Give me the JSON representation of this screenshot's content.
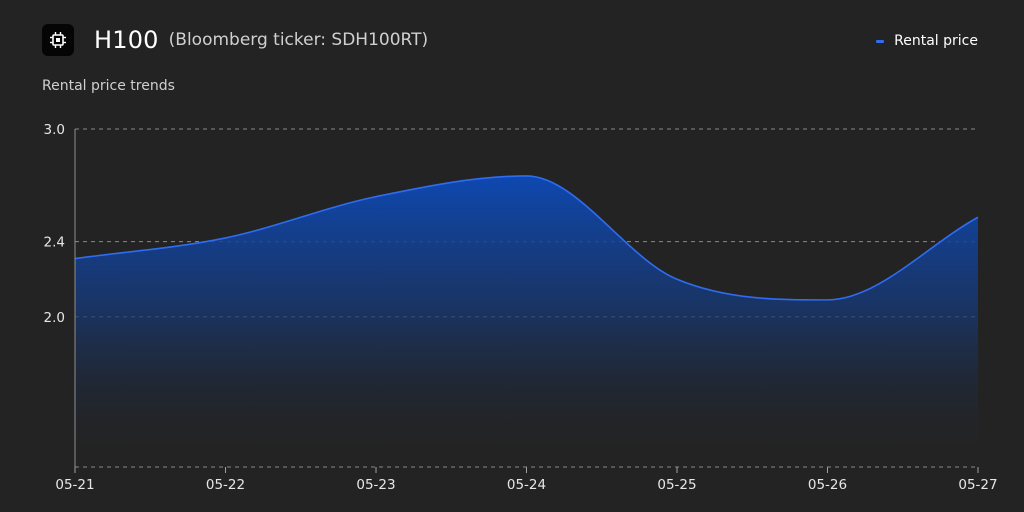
{
  "header": {
    "icon": "chip-icon",
    "title": "H100",
    "subtitle": "(Bloomberg ticker: SDH100RT)"
  },
  "section_title": "Rental price trends",
  "legend": {
    "label": "Rental price",
    "color": "#2f6cf0"
  },
  "chart_data": {
    "type": "area",
    "title": "",
    "xlabel": "",
    "ylabel": "",
    "categories": [
      "05-21",
      "05-22",
      "05-23",
      "05-24",
      "05-25",
      "05-26",
      "05-27"
    ],
    "series": [
      {
        "name": "Rental price",
        "values": [
          2.31,
          2.42,
          2.64,
          2.75,
          2.2,
          2.09,
          2.53
        ]
      }
    ],
    "y_ticks": [
      2.0,
      2.4,
      3.0
    ],
    "ylim": [
      1.2,
      3.0
    ],
    "grid": true,
    "legend_position": "top-right",
    "colors": {
      "line": "#2f6cf0",
      "fill_top": "#0c47b0",
      "grid": "#8a8a8a"
    }
  }
}
